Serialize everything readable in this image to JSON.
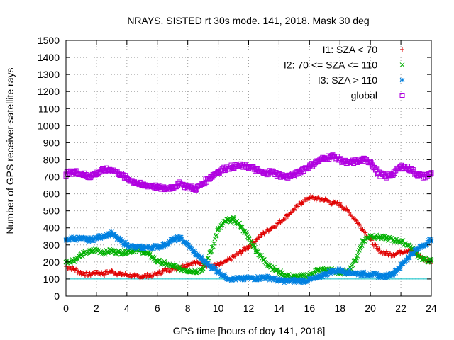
{
  "chart_data": {
    "type": "scatter",
    "title": "NRAYS. SISTED rt 30s mode. 141, 2018. Mask 30 deg",
    "xlabel": "GPS time [hours of doy 141, 2018]",
    "ylabel": "Number of GPS receiver-satellite rays",
    "xlim": [
      0,
      24
    ],
    "ylim": [
      0,
      1500
    ],
    "x_ticks": [
      0,
      2,
      4,
      6,
      8,
      10,
      12,
      14,
      16,
      18,
      20,
      22,
      24
    ],
    "y_ticks": [
      0,
      100,
      200,
      300,
      400,
      500,
      600,
      700,
      800,
      900,
      1000,
      1100,
      1200,
      1300,
      1400,
      1500
    ],
    "grid": true,
    "legend_position": "top-right",
    "reference_line": {
      "y": 100,
      "color": "#00c0c8"
    },
    "series": [
      {
        "name": "I1: SZA < 70",
        "marker": "plus",
        "color": "#e00000",
        "x": [
          0,
          0.5,
          1,
          1.5,
          2,
          2.5,
          3,
          3.5,
          4,
          4.5,
          5,
          5.5,
          6,
          6.5,
          7,
          7.5,
          8,
          8.5,
          9,
          9.5,
          10,
          10.5,
          11,
          11.5,
          12,
          12.5,
          13,
          13.5,
          14,
          14.5,
          15,
          15.5,
          16,
          16.5,
          17,
          17.5,
          18,
          18.5,
          19,
          19.5,
          20,
          20.5,
          21,
          21.5,
          22,
          22.5,
          23,
          23.5,
          24
        ],
        "values": [
          175,
          160,
          135,
          125,
          140,
          130,
          145,
          130,
          125,
          115,
          115,
          120,
          130,
          150,
          160,
          170,
          185,
          195,
          190,
          175,
          180,
          200,
          230,
          260,
          290,
          330,
          370,
          400,
          430,
          470,
          510,
          550,
          580,
          570,
          565,
          545,
          540,
          500,
          450,
          390,
          330,
          270,
          250,
          245,
          260,
          270,
          250,
          220,
          200
        ]
      },
      {
        "name": "I2: 70 <= SZA <= 110",
        "marker": "cross",
        "color": "#00b000",
        "x": [
          0,
          0.5,
          1,
          1.5,
          2,
          2.5,
          3,
          3.5,
          4,
          4.5,
          5,
          5.5,
          6,
          6.5,
          7,
          7.5,
          8,
          8.5,
          9,
          9.5,
          10,
          10.5,
          11,
          11.5,
          12,
          12.5,
          13,
          13.5,
          14,
          14.5,
          15,
          15.5,
          16,
          16.5,
          17,
          17.5,
          18,
          18.5,
          19,
          19.5,
          20,
          20.5,
          21,
          21.5,
          22,
          22.5,
          23,
          23.5,
          24
        ],
        "values": [
          200,
          210,
          240,
          260,
          270,
          255,
          265,
          255,
          260,
          270,
          265,
          240,
          205,
          190,
          175,
          160,
          150,
          145,
          160,
          260,
          390,
          440,
          450,
          410,
          340,
          270,
          210,
          170,
          140,
          120,
          110,
          115,
          125,
          150,
          155,
          150,
          135,
          140,
          210,
          320,
          355,
          345,
          340,
          330,
          320,
          300,
          250,
          215,
          205
        ]
      },
      {
        "name": "I3: SZA > 110",
        "marker": "star",
        "color": "#0080e0",
        "x": [
          0,
          0.5,
          1,
          1.5,
          2,
          2.5,
          3,
          3.5,
          4,
          4.5,
          5,
          5.5,
          6,
          6.5,
          7,
          7.5,
          8,
          8.5,
          9,
          9.5,
          10,
          10.5,
          11,
          11.5,
          12,
          12.5,
          13,
          13.5,
          14,
          14.5,
          15,
          15.5,
          16,
          16.5,
          17,
          17.5,
          18,
          18.5,
          19,
          19.5,
          20,
          20.5,
          21,
          21.5,
          22,
          22.5,
          23,
          23.5,
          24
        ],
        "values": [
          330,
          340,
          335,
          330,
          340,
          355,
          365,
          330,
          300,
          285,
          285,
          285,
          290,
          300,
          330,
          340,
          300,
          250,
          210,
          175,
          145,
          110,
          100,
          100,
          105,
          105,
          110,
          105,
          90,
          90,
          90,
          90,
          95,
          105,
          130,
          145,
          150,
          140,
          135,
          130,
          130,
          120,
          115,
          135,
          175,
          230,
          270,
          300,
          330
        ]
      },
      {
        "name": "global",
        "marker": "square",
        "color": "#b000e0",
        "x": [
          0,
          0.5,
          1,
          1.5,
          2,
          2.5,
          3,
          3.5,
          4,
          4.5,
          5,
          5.5,
          6,
          6.5,
          7,
          7.5,
          8,
          8.5,
          9,
          9.5,
          10,
          10.5,
          11,
          11.5,
          12,
          12.5,
          13,
          13.5,
          14,
          14.5,
          15,
          15.5,
          16,
          16.5,
          17,
          17.5,
          18,
          18.5,
          19,
          19.5,
          20,
          20.5,
          21,
          21.5,
          22,
          22.5,
          23,
          23.5,
          24
        ],
        "values": [
          715,
          730,
          720,
          700,
          720,
          740,
          740,
          720,
          690,
          670,
          650,
          650,
          640,
          630,
          640,
          660,
          640,
          630,
          660,
          700,
          730,
          750,
          760,
          765,
          760,
          740,
          720,
          730,
          710,
          700,
          710,
          740,
          760,
          790,
          810,
          820,
          800,
          780,
          790,
          800,
          790,
          720,
          700,
          720,
          760,
          750,
          720,
          700,
          720
        ]
      }
    ]
  }
}
